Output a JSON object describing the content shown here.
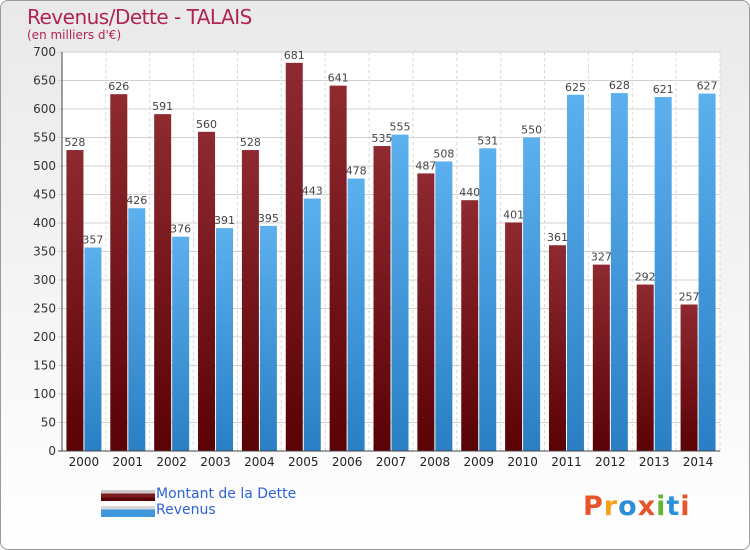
{
  "chart_data": {
    "type": "bar",
    "title": "Revenus/Dette - TALAIS",
    "subtitle": "(en milliers d'€)",
    "categories": [
      "2000",
      "2001",
      "2002",
      "2003",
      "2004",
      "2005",
      "2006",
      "2007",
      "2008",
      "2009",
      "2010",
      "2011",
      "2012",
      "2013",
      "2014"
    ],
    "series": [
      {
        "name": "Montant de la Dette",
        "color": "#7a1a1e",
        "values": [
          528,
          626,
          591,
          560,
          528,
          681,
          641,
          535,
          487,
          440,
          401,
          361,
          327,
          292,
          257
        ]
      },
      {
        "name": "Revenus",
        "color": "#3f98dc",
        "values": [
          357,
          426,
          376,
          391,
          395,
          443,
          478,
          555,
          508,
          531,
          550,
          625,
          628,
          621,
          627
        ]
      }
    ],
    "ylim": [
      0,
      700
    ],
    "ytick_step": 50,
    "grid": true,
    "legend_position": "bottom-left"
  },
  "logo": {
    "text": "Proxiti",
    "colors": [
      "#e8532a",
      "#f4a21b",
      "#2d8fd6",
      "#e8532a",
      "#64b52f",
      "#2d8fd6",
      "#e8532a"
    ]
  }
}
